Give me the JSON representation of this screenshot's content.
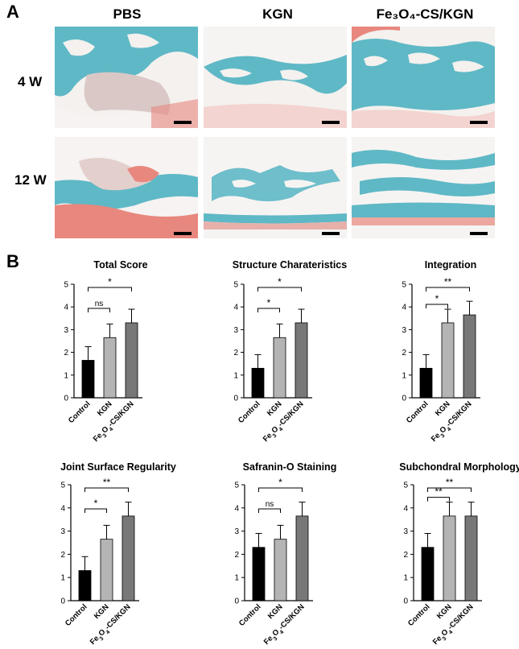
{
  "panel_a": {
    "letter": "A",
    "columns": [
      "PBS",
      "KGN",
      "Fe₃O₄-CS/KGN"
    ],
    "rows": [
      "4 W",
      "12 W"
    ]
  },
  "panel_b": {
    "letter": "B"
  },
  "colors": {
    "control": "#000000",
    "kgn": "#b4b4b4",
    "fe3o4": "#787878",
    "stain_blue": "#5fb8c6",
    "stain_red": "#e8877e"
  },
  "chart_data": [
    {
      "type": "bar",
      "title": "Total Score",
      "categories": [
        "Control",
        "KGN",
        "Fe3O4-CS/KGN"
      ],
      "values": [
        1.65,
        2.65,
        3.3
      ],
      "errors": [
        0.6,
        0.6,
        0.6
      ],
      "ylim": [
        0,
        5
      ],
      "yticks": [
        0,
        1,
        2,
        3,
        4,
        5
      ],
      "significance": [
        {
          "from": 0,
          "to": 1,
          "label": "ns"
        },
        {
          "from": 0,
          "to": 2,
          "label": "*"
        }
      ]
    },
    {
      "type": "bar",
      "title": "Structure Charateristics",
      "categories": [
        "Control",
        "KGN",
        "Fe3O4-CS/KGN"
      ],
      "values": [
        1.3,
        2.65,
        3.3
      ],
      "errors": [
        0.6,
        0.6,
        0.6
      ],
      "ylim": [
        0,
        5
      ],
      "yticks": [
        0,
        1,
        2,
        3,
        4,
        5
      ],
      "significance": [
        {
          "from": 0,
          "to": 1,
          "label": "*"
        },
        {
          "from": 0,
          "to": 2,
          "label": "*"
        }
      ]
    },
    {
      "type": "bar",
      "title": "Integration",
      "categories": [
        "Control",
        "KGN",
        "Fe3O4-CS/KGN"
      ],
      "values": [
        1.3,
        3.3,
        3.65
      ],
      "errors": [
        0.6,
        0.6,
        0.6
      ],
      "ylim": [
        0,
        5
      ],
      "yticks": [
        0,
        1,
        2,
        3,
        4,
        5
      ],
      "significance": [
        {
          "from": 0,
          "to": 1,
          "label": "*"
        },
        {
          "from": 0,
          "to": 2,
          "label": "**"
        }
      ]
    },
    {
      "type": "bar",
      "title": "Joint Surface Regularity",
      "categories": [
        "Control",
        "KGN",
        "Fe3O4-CS/KGN"
      ],
      "values": [
        1.3,
        2.65,
        3.65
      ],
      "errors": [
        0.6,
        0.6,
        0.6
      ],
      "ylim": [
        0,
        5
      ],
      "yticks": [
        0,
        1,
        2,
        3,
        4,
        5
      ],
      "significance": [
        {
          "from": 0,
          "to": 1,
          "label": "*"
        },
        {
          "from": 0,
          "to": 2,
          "label": "**"
        }
      ]
    },
    {
      "type": "bar",
      "title": "Safranin-O Staining",
      "categories": [
        "Control",
        "KGN",
        "Fe3O4-CS/KGN"
      ],
      "values": [
        2.3,
        2.65,
        3.65
      ],
      "errors": [
        0.6,
        0.6,
        0.6
      ],
      "ylim": [
        0,
        5
      ],
      "yticks": [
        0,
        1,
        2,
        3,
        4,
        5
      ],
      "significance": [
        {
          "from": 0,
          "to": 1,
          "label": "ns"
        },
        {
          "from": 0,
          "to": 2,
          "label": "*"
        }
      ]
    },
    {
      "type": "bar",
      "title": "Subchondral Morphology",
      "categories": [
        "Control",
        "KGN",
        "Fe3O4-CS/KGN"
      ],
      "values": [
        2.3,
        3.65,
        3.65
      ],
      "errors": [
        0.6,
        0.6,
        0.6
      ],
      "ylim": [
        0,
        5
      ],
      "yticks": [
        0,
        1,
        2,
        3,
        4,
        5
      ],
      "significance": [
        {
          "from": 0,
          "to": 1,
          "label": "**"
        },
        {
          "from": 0,
          "to": 2,
          "label": "**"
        }
      ]
    }
  ]
}
